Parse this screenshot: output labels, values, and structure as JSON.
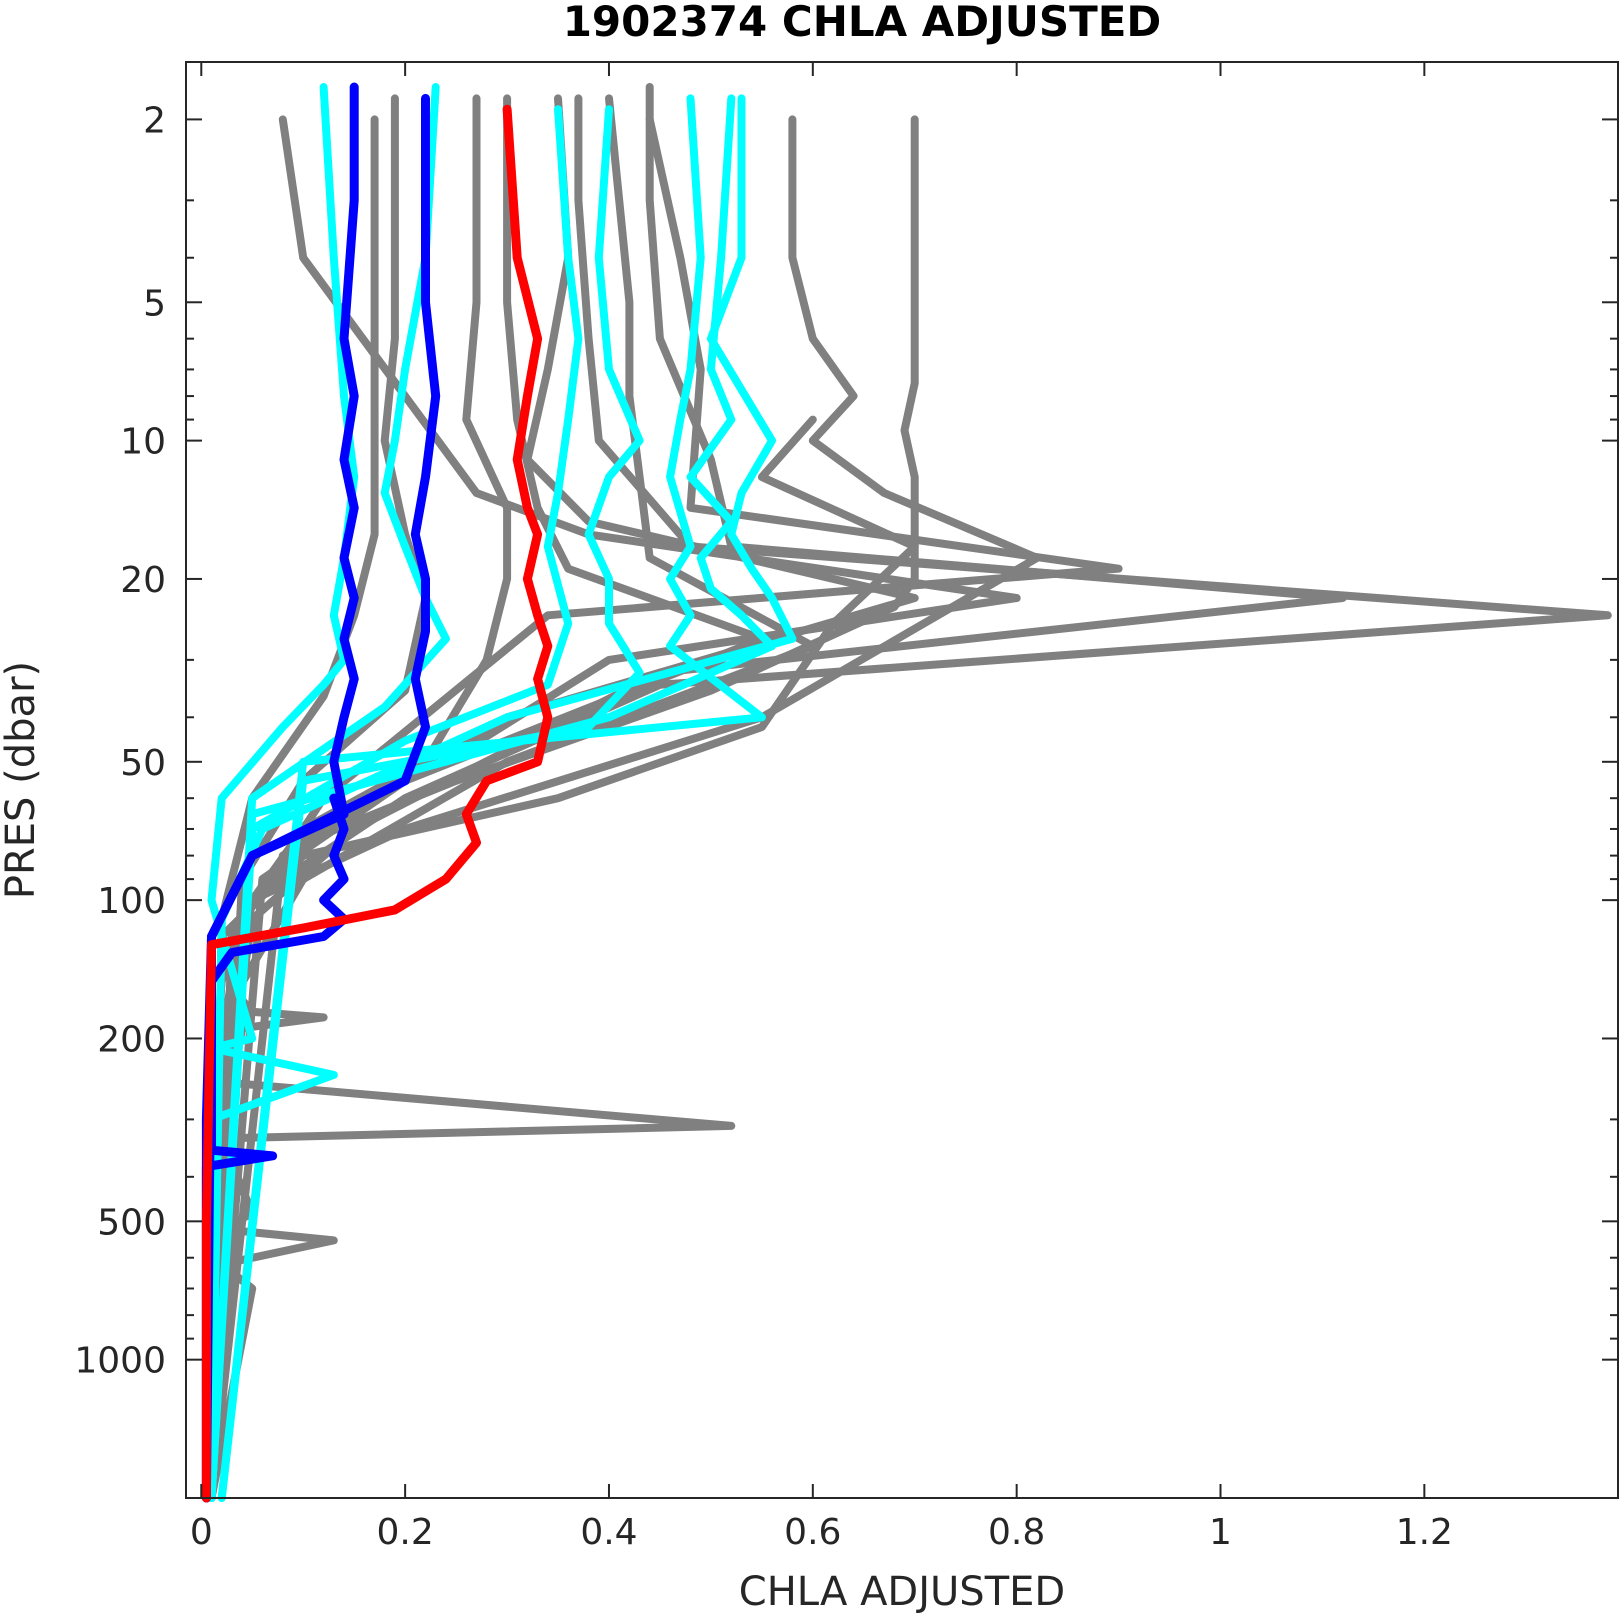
{
  "chart_data": {
    "type": "line",
    "title": "1902374  CHLA ADJUSTED",
    "xlabel": "CHLA ADJUSTED",
    "ylabel": "PRES (dbar)",
    "xlim": [
      -0.015,
      1.39
    ],
    "ylim": [
      1.5,
      2000
    ],
    "y_scale": "log",
    "y_reversed": true,
    "x_ticks": [
      0,
      0.2,
      0.4,
      0.6,
      0.8,
      1,
      1.2
    ],
    "x_tick_labels": [
      "0",
      "0.2",
      "0.4",
      "0.6",
      "0.8",
      "1",
      "1.2"
    ],
    "y_ticks": [
      2,
      5,
      10,
      20,
      50,
      100,
      200,
      500,
      1000
    ],
    "y_tick_labels": [
      "2",
      "5",
      "10",
      "20",
      "50",
      "100",
      "200",
      "500",
      "1000"
    ],
    "grid": false,
    "series_colors": {
      "gray": "#808080",
      "cyan": "#00ffff",
      "blue": "#0000ff",
      "red": "#ff0000"
    },
    "series": [
      {
        "color": "gray",
        "x": [
          0.08,
          0.1,
          0.2,
          0.27,
          0.38,
          0.8,
          0.4,
          0.24,
          0.1,
          0.05,
          0.02,
          0.01,
          0.005
        ],
        "y": [
          2,
          4,
          8,
          13,
          16,
          22,
          30,
          50,
          70,
          100,
          150,
          300,
          2000
        ]
      },
      {
        "color": "gray",
        "x": [
          0.7,
          0.7,
          0.69,
          0.7,
          0.7,
          0.68,
          0.5,
          0.25,
          0.1,
          0.04,
          0.02,
          0.01
        ],
        "y": [
          2,
          7.5,
          9.5,
          12,
          20,
          23,
          35,
          55,
          75,
          110,
          200,
          2000
        ]
      },
      {
        "color": "gray",
        "x": [
          0.58,
          0.58,
          0.6,
          0.64,
          0.6,
          0.67,
          0.82,
          0.55,
          0.2,
          0.05,
          0.02,
          0.01
        ],
        "y": [
          2,
          4,
          6,
          8,
          10,
          13,
          18,
          40,
          70,
          100,
          250,
          2000
        ]
      },
      {
        "color": "gray",
        "x": [
          0.44,
          0.44,
          0.45,
          0.5,
          0.52,
          1.12,
          0.45,
          0.15,
          0.05,
          0.02,
          0.01
        ],
        "y": [
          1.7,
          3,
          6,
          11,
          17,
          22,
          32,
          70,
          110,
          300,
          2000
        ]
      },
      {
        "color": "gray",
        "x": [
          0.44,
          0.47,
          0.49,
          0.48,
          0.9,
          0.34,
          0.12,
          0.03,
          0.01
        ],
        "y": [
          2,
          4,
          7,
          14,
          19,
          24,
          60,
          120,
          2000
        ]
      },
      {
        "color": "gray",
        "x": [
          0.37,
          0.37,
          0.38,
          0.39,
          0.48,
          1.38,
          0.45,
          0.2,
          0.05,
          0.02,
          0.01
        ],
        "y": [
          1.8,
          3,
          6,
          10,
          17,
          24,
          34,
          60,
          100,
          200,
          2000
        ]
      },
      {
        "color": "gray",
        "x": [
          0.4,
          0.42,
          0.42,
          0.43,
          0.44,
          0.6,
          0.3,
          0.1,
          0.02,
          0.01
        ],
        "y": [
          1.8,
          5,
          8,
          12,
          18,
          28,
          50,
          90,
          180,
          2000
        ]
      },
      {
        "color": "gray",
        "x": [
          0.35,
          0.36,
          0.34,
          0.32,
          0.38,
          0.7,
          0.3,
          0.1,
          0.03,
          0.01
        ],
        "y": [
          1.8,
          4,
          7,
          11,
          15,
          22,
          40,
          70,
          120,
          2000
        ]
      },
      {
        "color": "gray",
        "x": [
          0.3,
          0.3,
          0.31,
          0.33,
          0.36,
          0.55,
          0.2,
          0.06,
          0.01
        ],
        "y": [
          1.8,
          5,
          9,
          14,
          19,
          27,
          55,
          90,
          2000
        ]
      },
      {
        "color": "gray",
        "x": [
          0.27,
          0.27,
          0.26,
          0.3,
          0.3,
          0.28,
          0.22,
          0.08,
          0.01
        ],
        "y": [
          1.8,
          5,
          9,
          14,
          20,
          30,
          50,
          80,
          2000
        ]
      },
      {
        "color": "gray",
        "x": [
          0.19,
          0.19,
          0.18,
          0.2,
          0.22,
          0.2,
          0.1,
          0.04,
          0.01
        ],
        "y": [
          1.8,
          6,
          10,
          16,
          22,
          35,
          55,
          90,
          2000
        ]
      },
      {
        "color": "gray",
        "x": [
          0.17,
          0.17,
          0.17,
          0.17,
          0.15,
          0.12,
          0.05,
          0.02,
          0.01
        ],
        "y": [
          2,
          7,
          11,
          16,
          24,
          36,
          60,
          110,
          2000
        ]
      },
      {
        "color": "gray",
        "x": [
          0.6,
          0.55,
          0.7,
          0.62,
          0.55,
          0.35,
          0.1,
          0.02,
          0.01
        ],
        "y": [
          9,
          12,
          17,
          25,
          42,
          60,
          80,
          120,
          2000
        ]
      },
      {
        "color": "gray",
        "x": [
          0.04,
          0.04,
          0.05,
          0.12,
          0.04,
          0.03,
          0.52,
          0.02,
          0.05,
          0.02,
          0.13,
          0.02,
          0.05,
          0.01
        ],
        "y": [
          150,
          165,
          175,
          180,
          190,
          250,
          310,
          330,
          480,
          520,
          550,
          620,
          700,
          2000
        ]
      },
      {
        "color": "cyan",
        "x": [
          0.12,
          0.13,
          0.14,
          0.15,
          0.14,
          0.13,
          0.14,
          0.12,
          0.08,
          0.02,
          0.01,
          0.05,
          0.01,
          0.13,
          0.01,
          0.01
        ],
        "y": [
          1.7,
          4,
          8,
          12,
          18,
          24,
          30,
          34,
          42,
          60,
          100,
          200,
          210,
          240,
          300,
          2000
        ]
      },
      {
        "color": "cyan",
        "x": [
          0.23,
          0.22,
          0.2,
          0.19,
          0.18,
          0.2,
          0.22,
          0.24,
          0.18,
          0.05,
          0.01
        ],
        "y": [
          1.7,
          4,
          7,
          10,
          13,
          17,
          22,
          27,
          38,
          60,
          2000
        ]
      },
      {
        "color": "cyan",
        "x": [
          0.35,
          0.36,
          0.37,
          0.36,
          0.35,
          0.34,
          0.36,
          0.34,
          0.2,
          0.05,
          0.01
        ],
        "y": [
          1.9,
          4,
          6,
          9,
          13,
          17,
          25,
          34,
          45,
          70,
          2000
        ]
      },
      {
        "color": "cyan",
        "x": [
          0.4,
          0.39,
          0.4,
          0.43,
          0.4,
          0.38,
          0.4,
          0.4,
          0.43,
          0.38,
          0.1,
          0.02
        ],
        "y": [
          1.9,
          4,
          7,
          10,
          12,
          16,
          20,
          25,
          32,
          42,
          55,
          2000
        ]
      },
      {
        "color": "cyan",
        "x": [
          0.48,
          0.49,
          0.48,
          0.47,
          0.46,
          0.48,
          0.46,
          0.48,
          0.46,
          0.55,
          0.1,
          0.02
        ],
        "y": [
          1.8,
          4,
          7,
          9,
          12,
          17,
          20,
          24,
          28,
          40,
          50,
          2000
        ]
      },
      {
        "color": "cyan",
        "x": [
          0.52,
          0.51,
          0.5,
          0.52,
          0.48,
          0.52,
          0.49,
          0.5,
          0.53,
          0.56,
          0.4,
          0.05,
          0.01
        ],
        "y": [
          1.8,
          4,
          7,
          9,
          12,
          15,
          18,
          21,
          24,
          28,
          40,
          65,
          2000
        ]
      },
      {
        "color": "cyan",
        "x": [
          0.53,
          0.53,
          0.5,
          0.56,
          0.53,
          0.52,
          0.54,
          0.56,
          0.58,
          0.3,
          0.06,
          0.02,
          0.01
        ],
        "y": [
          1.8,
          4,
          6,
          10,
          13,
          16,
          19,
          22,
          27,
          40,
          70,
          110,
          2000
        ]
      },
      {
        "color": "blue",
        "x": [
          0.15,
          0.15,
          0.14,
          0.15,
          0.14,
          0.15,
          0.14,
          0.15,
          0.14,
          0.15,
          0.14,
          0.13,
          0.14,
          0.05,
          0.01,
          0.01,
          0.01,
          0.07,
          0.005,
          0.005
        ],
        "y": [
          1.7,
          3,
          6,
          8,
          11,
          14,
          18,
          22,
          27,
          33,
          40,
          50,
          65,
          80,
          120,
          200,
          350,
          360,
          380,
          2000
        ]
      },
      {
        "color": "blue",
        "x": [
          0.22,
          0.22,
          0.23,
          0.22,
          0.21,
          0.22,
          0.22,
          0.21,
          0.22,
          0.2,
          0.05,
          0.01,
          0.005,
          0.005
        ],
        "y": [
          1.8,
          5,
          8,
          12,
          16,
          20,
          26,
          33,
          42,
          55,
          80,
          120,
          300,
          2000
        ]
      },
      {
        "color": "blue",
        "x": [
          0.13,
          0.14,
          0.13,
          0.14,
          0.12,
          0.14,
          0.12,
          0.03,
          0.01,
          0.005
        ],
        "y": [
          60,
          70,
          80,
          90,
          100,
          110,
          120,
          130,
          150,
          2000
        ]
      },
      {
        "color": "red",
        "x": [
          0.3,
          0.31,
          0.33,
          0.32,
          0.31,
          0.32,
          0.33,
          0.32,
          0.33,
          0.34,
          0.33,
          0.34,
          0.33,
          0.28,
          0.26,
          0.27,
          0.24,
          0.19,
          0.1,
          0.01,
          0.005,
          0.005
        ],
        "y": [
          1.9,
          4,
          6,
          8,
          11,
          14,
          16,
          20,
          24,
          28,
          33,
          40,
          50,
          55,
          65,
          75,
          90,
          105,
          115,
          125,
          500,
          2000
        ]
      }
    ]
  }
}
